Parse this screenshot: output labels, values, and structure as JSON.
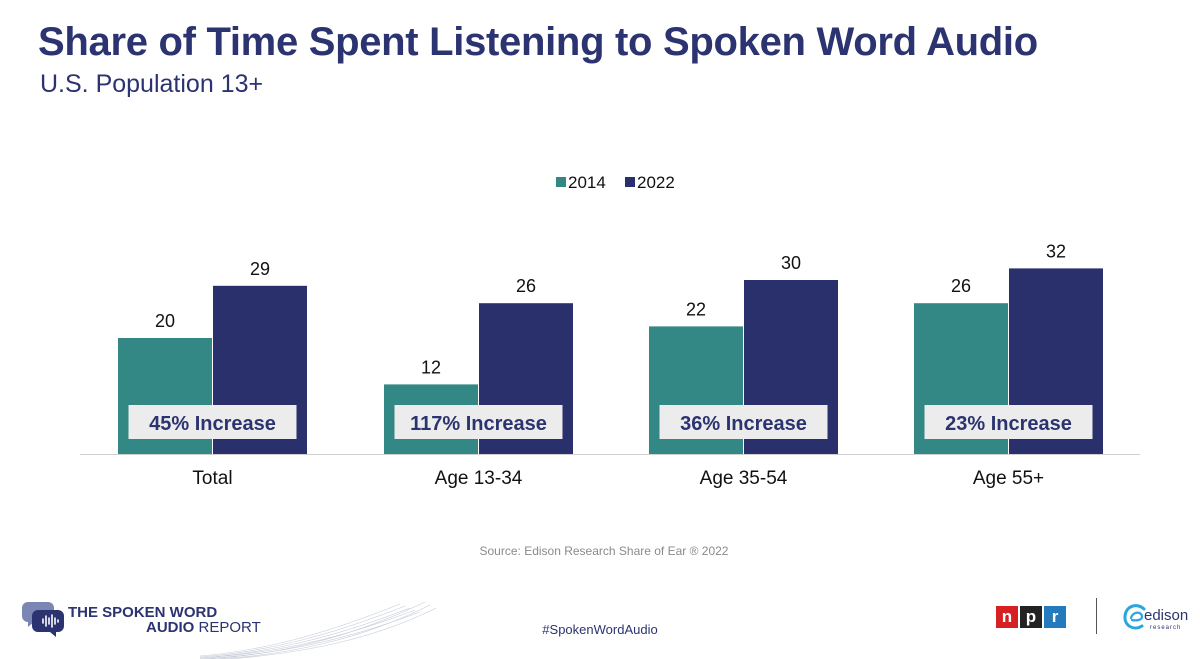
{
  "header": {
    "title": "Share of Time Spent Listening to Spoken Word Audio",
    "subtitle": "U.S. Population 13+"
  },
  "chart_data": {
    "type": "bar",
    "categories": [
      "Total",
      "Age 13-34",
      "Age 35-54",
      "Age 55+"
    ],
    "series": [
      {
        "name": "2014",
        "values": [
          20,
          12,
          22,
          26
        ],
        "color": "#338886"
      },
      {
        "name": "2022",
        "values": [
          29,
          26,
          30,
          32
        ],
        "color": "#29306b"
      }
    ],
    "annotations": [
      "45% Increase",
      "117% Increase",
      "36% Increase",
      "23% Increase"
    ],
    "legend_position": "top-center",
    "ylim": [
      0,
      35
    ],
    "grid": false
  },
  "footer": {
    "source": "Source: Edison Research Share of Ear ® 2022",
    "hashtag": "#SpokenWordAudio",
    "report_line1": "THE SPOKEN WORD",
    "report_line2_bold": "AUDIO",
    "report_line2_light": "REPORT",
    "npr_letters": [
      "n",
      "p",
      "r"
    ],
    "npr_colors": [
      "#d62021",
      "#222222",
      "#237bbd"
    ],
    "edison_name": "edison",
    "edison_sub": "research"
  }
}
